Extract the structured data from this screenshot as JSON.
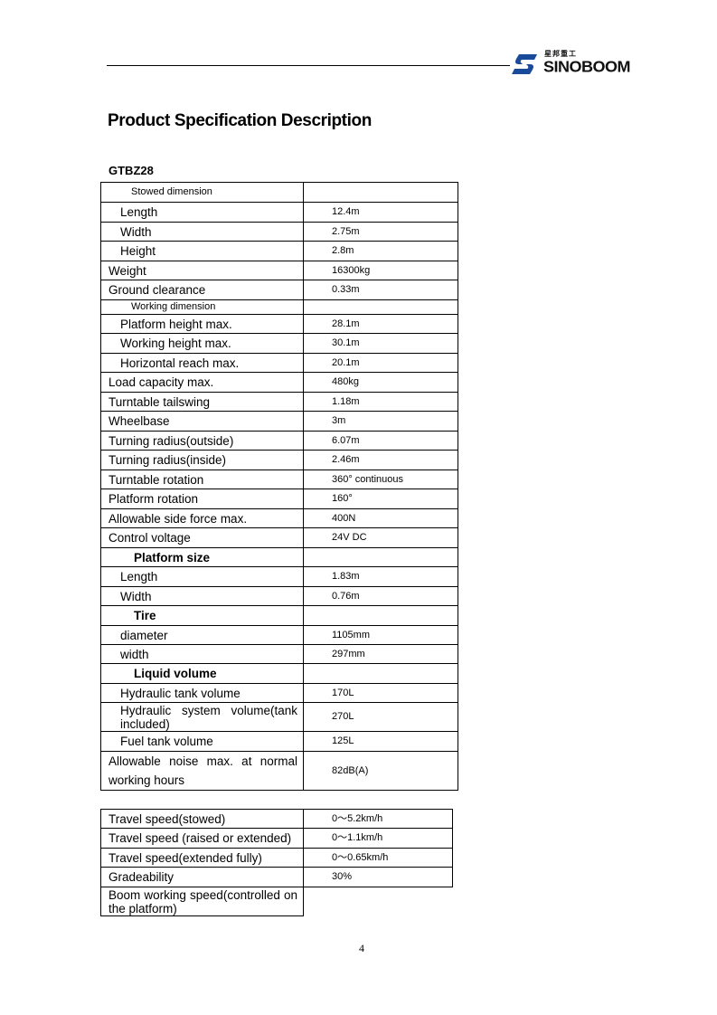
{
  "header": {
    "logo_cn": "星邦重工",
    "logo_en": "SINOBOOM",
    "brand_color": "#1a4a9a"
  },
  "title": "Product Specification Description",
  "model": "GTBZ28",
  "spec_table": [
    {
      "kind": "section",
      "label": "Stowed dimension",
      "value": ""
    },
    {
      "kind": "item",
      "label": "Length",
      "value": "12.4m"
    },
    {
      "kind": "item",
      "label": "Width",
      "value": "2.75m"
    },
    {
      "kind": "item",
      "label": "Height",
      "value": "2.8m"
    },
    {
      "kind": "plain",
      "label": "Weight",
      "value": "16300kg"
    },
    {
      "kind": "plain",
      "label": "Ground clearance",
      "value": "0.33m"
    },
    {
      "kind": "section",
      "label": "Working dimension",
      "value": ""
    },
    {
      "kind": "item",
      "label": "Platform height max.",
      "value": "28.1m"
    },
    {
      "kind": "item",
      "label": "Working height max.",
      "value": "30.1m"
    },
    {
      "kind": "item",
      "label": "Horizontal reach max.",
      "value": "20.1m"
    },
    {
      "kind": "plain",
      "label": "Load capacity max.",
      "value": "480kg"
    },
    {
      "kind": "plain",
      "label": "Turntable tailswing",
      "value": "1.18m"
    },
    {
      "kind": "plain",
      "label": "Wheelbase",
      "value": "3m"
    },
    {
      "kind": "plain",
      "label": "Turning radius(outside)",
      "value": "6.07m"
    },
    {
      "kind": "plain",
      "label": "Turning radius(inside)",
      "value": "2.46m"
    },
    {
      "kind": "plain",
      "label": "Turntable rotation",
      "value": "360° continuous"
    },
    {
      "kind": "plain",
      "label": "Platform rotation",
      "value": "160°"
    },
    {
      "kind": "plain",
      "label": "Allowable side force max.",
      "value": "400N"
    },
    {
      "kind": "plain",
      "label": "Control voltage",
      "value": "24V DC"
    },
    {
      "kind": "bold-section",
      "label": "Platform size",
      "value": ""
    },
    {
      "kind": "item",
      "label": "Length",
      "value": "1.83m"
    },
    {
      "kind": "item",
      "label": "Width",
      "value": "0.76m"
    },
    {
      "kind": "bold-section",
      "label": "Tire",
      "value": ""
    },
    {
      "kind": "item",
      "label": "diameter",
      "value": "1105mm"
    },
    {
      "kind": "item",
      "label": "width",
      "value": "297mm"
    },
    {
      "kind": "bold-section",
      "label": "Liquid volume",
      "value": ""
    },
    {
      "kind": "item",
      "label": "Hydraulic tank volume",
      "value": "170L"
    },
    {
      "kind": "item",
      "label": "Hydraulic system volume(tank included)",
      "value": "270L"
    },
    {
      "kind": "item",
      "label": "Fuel tank volume",
      "value": "125L"
    },
    {
      "kind": "plain",
      "label": "Allowable noise max. at normal working hours",
      "value": "82dB(A)"
    }
  ],
  "speed_table": [
    {
      "label": "Travel speed(stowed)",
      "value": "0～5.2km/h"
    },
    {
      "label": "Travel speed (raised or extended)",
      "value": "0～1.1km/h"
    },
    {
      "label": "Travel speed(extended fully)",
      "value": "0～0.65km/h"
    },
    {
      "label": "Gradeability",
      "value": "30%"
    },
    {
      "label": "Boom working speed(controlled on the platform)",
      "value": ""
    }
  ],
  "page_number": "4"
}
